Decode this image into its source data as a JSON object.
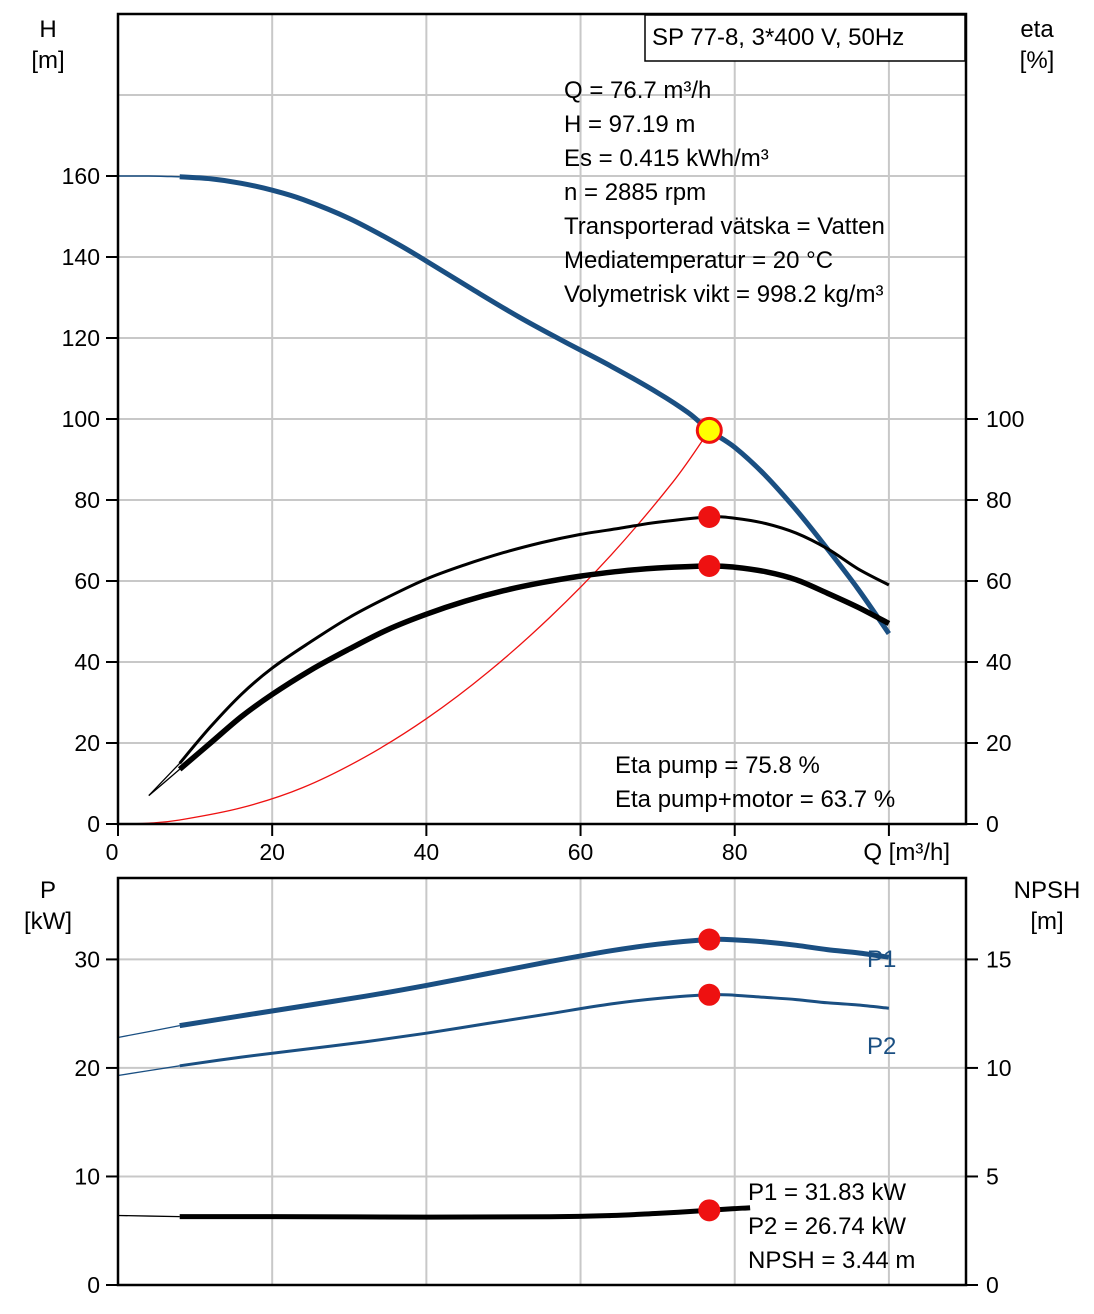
{
  "model_box": "SP 77-8, 3*400 V, 50Hz",
  "op_info": [
    "Q = 76.7 m³/h",
    "H = 97.19 m",
    "Es = 0.415 kWh/m³",
    "n = 2885 rpm",
    "Transporterad vätska = Vatten",
    "Mediatemperatur = 20 °C",
    "Volymetrisk vikt = 998.2 kg/m³"
  ],
  "eta_info": [
    "Eta pump = 75.8 %",
    "Eta pump+motor = 63.7 %"
  ],
  "power_info": [
    "P1 = 31.83 kW",
    "P2 = 26.74 kW",
    "NPSH = 3.44 m"
  ],
  "colors": {
    "curve_blue": "#1a4f82",
    "point_red": "#ee1111",
    "point_yellow": "#ffff00",
    "system_red": "#ee1111",
    "black": "#000000"
  },
  "chart_data": [
    {
      "type": "line",
      "title": "",
      "x_axis": {
        "label": "Q [m³/h]",
        "range": [
          0,
          110
        ],
        "ticks": [
          "0",
          "20",
          "40",
          "60",
          "80"
        ],
        "tick_values": [
          0,
          20,
          40,
          60,
          80
        ]
      },
      "y_axis_left": {
        "label": [
          "H",
          "[m]"
        ],
        "range": [
          0,
          200
        ],
        "ticks": [
          "0",
          "20",
          "40",
          "60",
          "80",
          "100",
          "120",
          "140",
          "160"
        ],
        "tick_values": [
          0,
          20,
          40,
          60,
          80,
          100,
          120,
          140,
          160
        ]
      },
      "y_axis_right": {
        "label": [
          "eta",
          "[%]"
        ],
        "range": [
          0,
          200
        ],
        "ticks": [
          "0",
          "20",
          "40",
          "60",
          "80",
          "100"
        ],
        "tick_values": [
          0,
          20,
          40,
          60,
          80,
          100
        ]
      },
      "grid": true,
      "series": [
        {
          "role": "head",
          "x": [
            0,
            4,
            8,
            12,
            16,
            20,
            24,
            30,
            36,
            40,
            46,
            52,
            58,
            64,
            70,
            74,
            76.7,
            80,
            84,
            88,
            92,
            96,
            100
          ],
          "y": [
            160,
            160,
            159.8,
            159.3,
            158.2,
            156.5,
            154.2,
            149.5,
            143.5,
            139,
            132,
            125.2,
            119,
            113,
            106.5,
            101.5,
            97.19,
            93,
            86,
            77.5,
            68,
            58,
            47
          ]
        },
        {
          "role": "system",
          "x": [
            0,
            4,
            8,
            16,
            24,
            32,
            40,
            48,
            56,
            64,
            72,
            76.7
          ],
          "y": [
            0,
            0.2,
            1,
            4,
            9,
            16.5,
            26,
            37.5,
            51,
            66.5,
            84.5,
            97.19
          ]
        },
        {
          "role": "eta_pump",
          "x": [
            4,
            8,
            12,
            16,
            20,
            25,
            30,
            35,
            40,
            45,
            50,
            55,
            60,
            65,
            70,
            76.7,
            80,
            84,
            88,
            92,
            96,
            100
          ],
          "y": [
            7,
            15,
            24,
            32,
            38.5,
            45,
            51,
            56,
            60.5,
            64,
            67,
            69.5,
            71.5,
            73,
            74.5,
            75.8,
            75.5,
            74.2,
            71.8,
            68,
            63,
            59
          ]
        },
        {
          "role": "eta_pump_motor",
          "x": [
            4,
            8,
            12,
            16,
            20,
            25,
            30,
            35,
            40,
            45,
            50,
            55,
            60,
            65,
            70,
            76.7,
            80,
            84,
            88,
            92,
            96,
            100
          ],
          "y": [
            7,
            13.5,
            20,
            26.5,
            32,
            38,
            43.2,
            48,
            51.8,
            55,
            57.6,
            59.6,
            61.2,
            62.4,
            63.2,
            63.7,
            63.4,
            62.3,
            60.3,
            57,
            53.5,
            49.5
          ]
        }
      ],
      "duty_points": [
        {
          "x": 76.7,
          "y": 97.19,
          "style": "yellow"
        },
        {
          "x": 76.7,
          "y": 75.8,
          "style": "red"
        },
        {
          "x": 76.7,
          "y": 63.7,
          "style": "red"
        }
      ]
    },
    {
      "type": "line",
      "title": "",
      "x_axis": {
        "range": [
          0,
          110
        ]
      },
      "y_axis_left": {
        "label": [
          "P",
          "[kW]"
        ],
        "range": [
          0,
          37.5
        ],
        "ticks": [
          "0",
          "10",
          "20",
          "30"
        ],
        "tick_values": [
          0,
          10,
          20,
          30
        ]
      },
      "y_axis_right": {
        "label": [
          "NPSH",
          "[m]"
        ],
        "range": [
          0,
          18.75
        ],
        "ticks": [
          "0",
          "5",
          "10",
          "15"
        ],
        "tick_values": [
          0,
          5,
          10,
          15
        ]
      },
      "grid": true,
      "series": [
        {
          "name": "P1",
          "x": [
            0,
            8,
            16,
            24,
            32,
            40,
            48,
            56,
            64,
            70,
            76.7,
            80,
            84,
            88,
            92,
            96,
            100
          ],
          "y": [
            22.8,
            23.9,
            24.8,
            25.7,
            26.6,
            27.6,
            28.7,
            29.8,
            30.8,
            31.4,
            31.83,
            31.8,
            31.6,
            31.3,
            30.9,
            30.6,
            30.2
          ]
        },
        {
          "name": "P2",
          "x": [
            0,
            8,
            16,
            24,
            32,
            40,
            48,
            56,
            64,
            70,
            76.7,
            80,
            84,
            88,
            92,
            96,
            100
          ],
          "y": [
            19.3,
            20.2,
            21,
            21.7,
            22.4,
            23.2,
            24.1,
            25,
            25.9,
            26.4,
            26.74,
            26.7,
            26.5,
            26.3,
            26,
            25.8,
            25.5
          ]
        },
        {
          "role": "npsh",
          "x": [
            0,
            8,
            20,
            40,
            56,
            64,
            70,
            76.7,
            80,
            82
          ],
          "y": [
            3.2,
            3.15,
            3.15,
            3.13,
            3.14,
            3.2,
            3.3,
            3.44,
            3.52,
            3.56
          ]
        }
      ],
      "duty_points": [
        {
          "x": 76.7,
          "y": 31.83,
          "style": "red"
        },
        {
          "x": 76.7,
          "y": 26.74,
          "style": "red"
        },
        {
          "x": 76.7,
          "y": 6.88,
          "style": "red"
        }
      ]
    }
  ]
}
